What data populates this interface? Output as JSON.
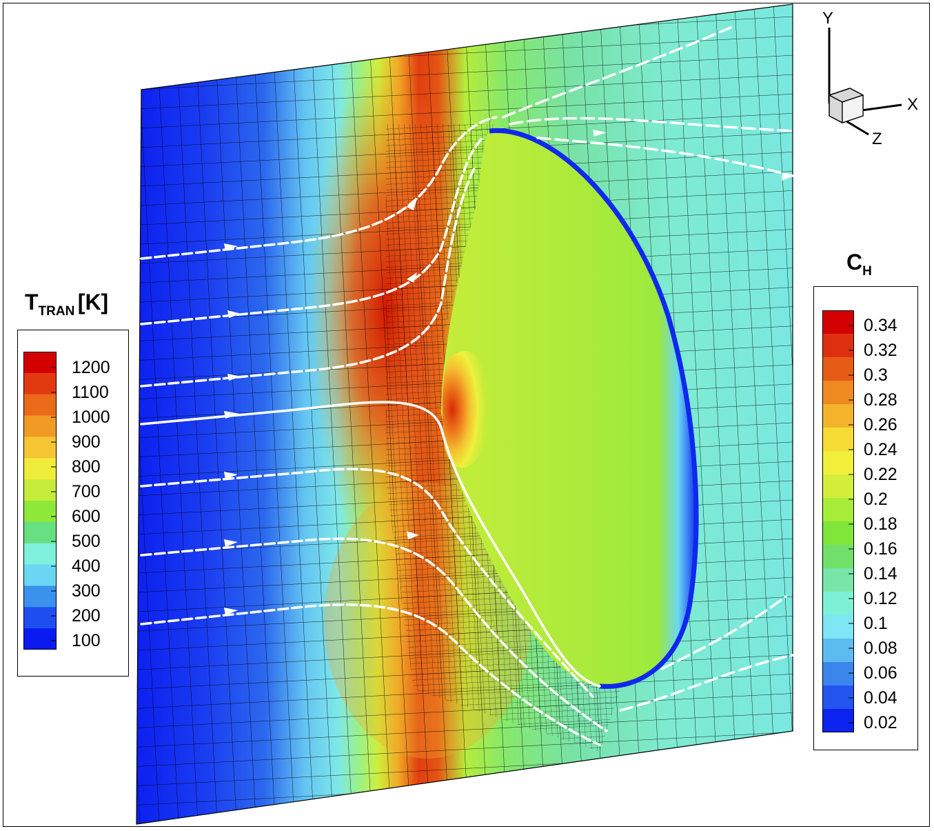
{
  "figure": {
    "description_free": true,
    "temperature_legend": {
      "title_main": "T",
      "title_sub": "TRAN",
      "title_unit": "[K]",
      "levels": [
        "1200",
        "1100",
        "1000",
        "900",
        "800",
        "700",
        "600",
        "500",
        "400",
        "300",
        "200",
        "100"
      ],
      "colors": [
        "#d40000",
        "#e23a10",
        "#ea6a1a",
        "#f19a24",
        "#f5c534",
        "#f0ec3a",
        "#c6ec3a",
        "#8ee83a",
        "#66e080",
        "#7ef0dc",
        "#6ad6f4",
        "#3a92ec",
        "#1e4ef0",
        "#0a1af0"
      ]
    },
    "ch_legend": {
      "title_main": "C",
      "title_sub": "H",
      "levels": [
        "0.34",
        "0.32",
        "0.3",
        "0.28",
        "0.26",
        "0.24",
        "0.22",
        "0.2",
        "0.18",
        "0.16",
        "0.14",
        "0.12",
        "0.1",
        "0.08",
        "0.06",
        "0.04",
        "0.02"
      ],
      "colors": [
        "#d40000",
        "#de3010",
        "#e65c16",
        "#ee8a20",
        "#f3b42c",
        "#f6dc34",
        "#f0f03a",
        "#d2ee3a",
        "#a8ec3a",
        "#80e63a",
        "#70e06a",
        "#78e6a8",
        "#7ef0d6",
        "#7ee6f4",
        "#5cbcf0",
        "#3a86ec",
        "#2454ee",
        "#0c22ee"
      ]
    },
    "axes": {
      "y": "Y",
      "x": "X",
      "z": "Z"
    }
  }
}
